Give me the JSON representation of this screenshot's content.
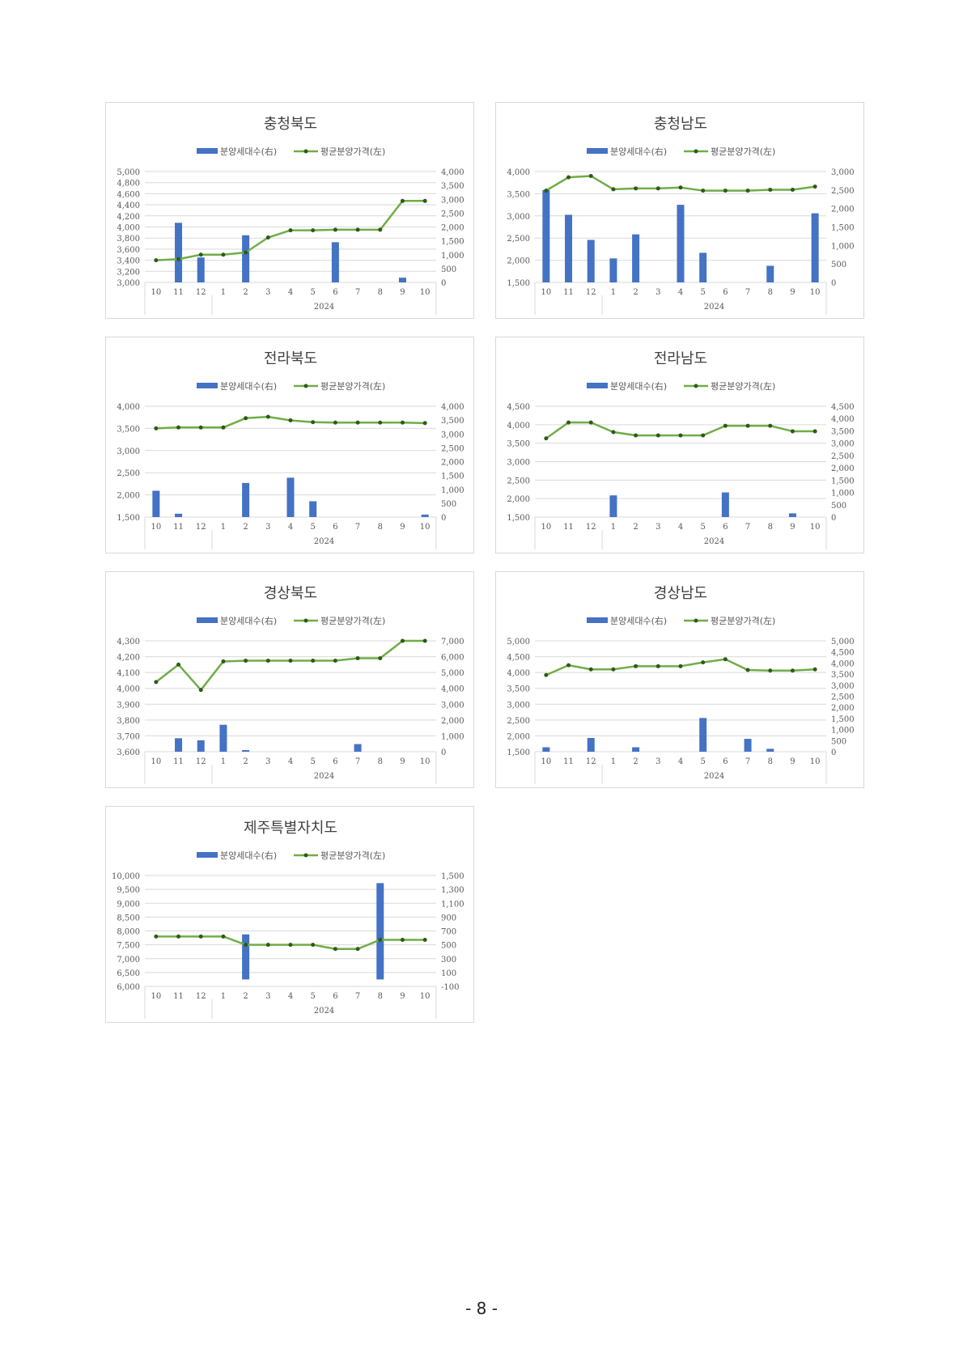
{
  "page": {
    "number": "- 8 -"
  },
  "legend": {
    "bar_label": "분양세대수(右)",
    "line_label": "평균분양가격(左)"
  },
  "colors": {
    "bar": "#4472C4",
    "line": "#70AD47",
    "marker": "#2d5a1b",
    "grid": "#d9d9d9",
    "axis_text": "#595959"
  },
  "chart_data": [
    {
      "type": "bar+line",
      "title": "충청북도",
      "categories": [
        "10",
        "11",
        "12",
        "1",
        "2",
        "3",
        "4",
        "5",
        "6",
        "7",
        "8",
        "9",
        "10"
      ],
      "year_label": "2024",
      "left_axis": {
        "ylim": [
          3000,
          5000
        ],
        "ticks": [
          "3,000",
          "3,200",
          "3,400",
          "3,600",
          "3,800",
          "4,000",
          "4,200",
          "4,400",
          "4,600",
          "4,800",
          "5,000"
        ]
      },
      "right_axis": {
        "ylim": [
          0,
          4000
        ],
        "ticks": [
          "0",
          "500",
          "1,000",
          "1,500",
          "2,000",
          "2,500",
          "3,000",
          "3,500",
          "4,000"
        ]
      },
      "series": [
        {
          "name": "분양세대수(右)",
          "type": "bar",
          "axis": "right",
          "values": [
            0,
            2150,
            900,
            0,
            1700,
            0,
            0,
            0,
            1450,
            0,
            0,
            170,
            0
          ]
        },
        {
          "name": "평균분양가격(左)",
          "type": "line",
          "axis": "left",
          "values": [
            3400,
            3420,
            3500,
            3500,
            3540,
            3810,
            3940,
            3940,
            3950,
            3950,
            3950,
            4470,
            4470
          ]
        }
      ]
    },
    {
      "type": "bar+line",
      "title": "충청남도",
      "categories": [
        "10",
        "11",
        "12",
        "1",
        "2",
        "3",
        "4",
        "5",
        "6",
        "7",
        "8",
        "9",
        "10"
      ],
      "year_label": "2024",
      "left_axis": {
        "ylim": [
          1500,
          4000
        ],
        "ticks": [
          "1,500",
          "2,000",
          "2,500",
          "3,000",
          "3,500",
          "4,000"
        ]
      },
      "right_axis": {
        "ylim": [
          0,
          3000
        ],
        "ticks": [
          "0",
          "500",
          "1,000",
          "1,500",
          "2,000",
          "2,500",
          "3,000"
        ]
      },
      "series": [
        {
          "name": "분양세대수(右)",
          "type": "bar",
          "axis": "right",
          "values": [
            2500,
            1830,
            1150,
            650,
            1300,
            0,
            2100,
            800,
            0,
            0,
            450,
            0,
            1870
          ]
        },
        {
          "name": "평균분양가격(左)",
          "type": "line",
          "axis": "left",
          "values": [
            3570,
            3870,
            3900,
            3600,
            3620,
            3620,
            3640,
            3570,
            3570,
            3570,
            3590,
            3590,
            3660
          ]
        }
      ]
    },
    {
      "type": "bar+line",
      "title": "전라북도",
      "categories": [
        "10",
        "11",
        "12",
        "1",
        "2",
        "3",
        "4",
        "5",
        "6",
        "7",
        "8",
        "9",
        "10"
      ],
      "year_label": "2024",
      "left_axis": {
        "ylim": [
          1500,
          4000
        ],
        "ticks": [
          "1,500",
          "2,000",
          "2,500",
          "3,000",
          "3,500",
          "4,000"
        ]
      },
      "right_axis": {
        "ylim": [
          0,
          4000
        ],
        "ticks": [
          "0",
          "500",
          "1,000",
          "1,500",
          "2,000",
          "2,500",
          "3,000",
          "3,500",
          "4,000"
        ]
      },
      "series": [
        {
          "name": "분양세대수(右)",
          "type": "bar",
          "axis": "right",
          "values": [
            950,
            120,
            0,
            0,
            1230,
            0,
            1420,
            570,
            0,
            0,
            0,
            0,
            90
          ]
        },
        {
          "name": "평균분양가격(左)",
          "type": "line",
          "axis": "left",
          "values": [
            3500,
            3520,
            3520,
            3520,
            3730,
            3760,
            3680,
            3640,
            3630,
            3630,
            3630,
            3630,
            3620
          ]
        }
      ]
    },
    {
      "type": "bar+line",
      "title": "전라남도",
      "categories": [
        "10",
        "11",
        "12",
        "1",
        "2",
        "3",
        "4",
        "5",
        "6",
        "7",
        "8",
        "9",
        "10"
      ],
      "year_label": "2024",
      "left_axis": {
        "ylim": [
          1500,
          4500
        ],
        "ticks": [
          "1,500",
          "2,000",
          "2,500",
          "3,000",
          "3,500",
          "4,000",
          "4,500"
        ]
      },
      "right_axis": {
        "ylim": [
          0,
          4500
        ],
        "ticks": [
          "0",
          "500",
          "1,000",
          "1,500",
          "2,000",
          "2,500",
          "3,000",
          "3,500",
          "4,000",
          "4,500"
        ]
      },
      "series": [
        {
          "name": "분양세대수(右)",
          "type": "bar",
          "axis": "right",
          "values": [
            0,
            0,
            0,
            880,
            0,
            0,
            0,
            0,
            1000,
            0,
            0,
            150,
            0
          ]
        },
        {
          "name": "평균분양가격(左)",
          "type": "line",
          "axis": "left",
          "values": [
            3630,
            4060,
            4060,
            3800,
            3710,
            3710,
            3710,
            3710,
            3970,
            3970,
            3970,
            3820,
            3820
          ]
        }
      ]
    },
    {
      "type": "bar+line",
      "title": "경상북도",
      "categories": [
        "10",
        "11",
        "12",
        "1",
        "2",
        "3",
        "4",
        "5",
        "6",
        "7",
        "8",
        "9",
        "10"
      ],
      "year_label": "2024",
      "left_axis": {
        "ylim": [
          3600,
          4300
        ],
        "ticks": [
          "3,600",
          "3,700",
          "3,800",
          "3,900",
          "4,000",
          "4,100",
          "4,200",
          "4,300"
        ]
      },
      "right_axis": {
        "ylim": [
          0,
          7000
        ],
        "ticks": [
          "0",
          "1,000",
          "2,000",
          "3,000",
          "4,000",
          "5,000",
          "6,000",
          "7,000"
        ]
      },
      "series": [
        {
          "name": "분양세대수(右)",
          "type": "bar",
          "axis": "right",
          "values": [
            0,
            850,
            720,
            1700,
            100,
            0,
            0,
            0,
            0,
            480,
            0,
            0,
            0
          ]
        },
        {
          "name": "평균분양가격(左)",
          "type": "line",
          "axis": "left",
          "values": [
            4040,
            4150,
            3990,
            4170,
            4175,
            4175,
            4175,
            4175,
            4175,
            4190,
            4190,
            4300,
            4300
          ]
        }
      ]
    },
    {
      "type": "bar+line",
      "title": "경상남도",
      "categories": [
        "10",
        "11",
        "12",
        "1",
        "2",
        "3",
        "4",
        "5",
        "6",
        "7",
        "8",
        "9",
        "10"
      ],
      "year_label": "2024",
      "left_axis": {
        "ylim": [
          1500,
          5000
        ],
        "ticks": [
          "1,500",
          "2,000",
          "2,500",
          "3,000",
          "3,500",
          "4,000",
          "4,500",
          "5,000"
        ]
      },
      "right_axis": {
        "ylim": [
          0,
          5000
        ],
        "ticks": [
          "0",
          "500",
          "1,000",
          "1,500",
          "2,000",
          "2,500",
          "3,000",
          "3,500",
          "4,000",
          "4,500",
          "5,000"
        ]
      },
      "series": [
        {
          "name": "분양세대수(右)",
          "type": "bar",
          "axis": "right",
          "values": [
            200,
            0,
            620,
            0,
            200,
            0,
            0,
            1520,
            0,
            580,
            130,
            0,
            0
          ]
        },
        {
          "name": "평균분양가격(左)",
          "type": "line",
          "axis": "left",
          "values": [
            3920,
            4230,
            4100,
            4100,
            4200,
            4200,
            4200,
            4320,
            4420,
            4080,
            4060,
            4060,
            4100
          ]
        }
      ]
    },
    {
      "type": "bar+line",
      "title": "제주특별자치도",
      "categories": [
        "10",
        "11",
        "12",
        "1",
        "2",
        "3",
        "4",
        "5",
        "6",
        "7",
        "8",
        "9",
        "10"
      ],
      "year_label": "2024",
      "left_axis": {
        "ylim": [
          6000,
          10000
        ],
        "ticks": [
          "6,000",
          "6,500",
          "7,000",
          "7,500",
          "8,000",
          "8,500",
          "9,000",
          "9,500",
          "10,000"
        ]
      },
      "right_axis": {
        "ylim": [
          -100,
          1500
        ],
        "ticks": [
          "-100",
          "100",
          "300",
          "500",
          "700",
          "900",
          "1,100",
          "1,300",
          "1,500"
        ]
      },
      "series": [
        {
          "name": "분양세대수(右)",
          "type": "bar",
          "axis": "right",
          "values": [
            0,
            0,
            0,
            0,
            650,
            0,
            0,
            0,
            0,
            0,
            1390,
            0,
            0
          ]
        },
        {
          "name": "평균분양가격(左)",
          "type": "line",
          "axis": "left",
          "values": [
            7800,
            7800,
            7800,
            7800,
            7500,
            7500,
            7500,
            7500,
            7350,
            7350,
            7680,
            7680,
            7680
          ]
        }
      ]
    }
  ]
}
